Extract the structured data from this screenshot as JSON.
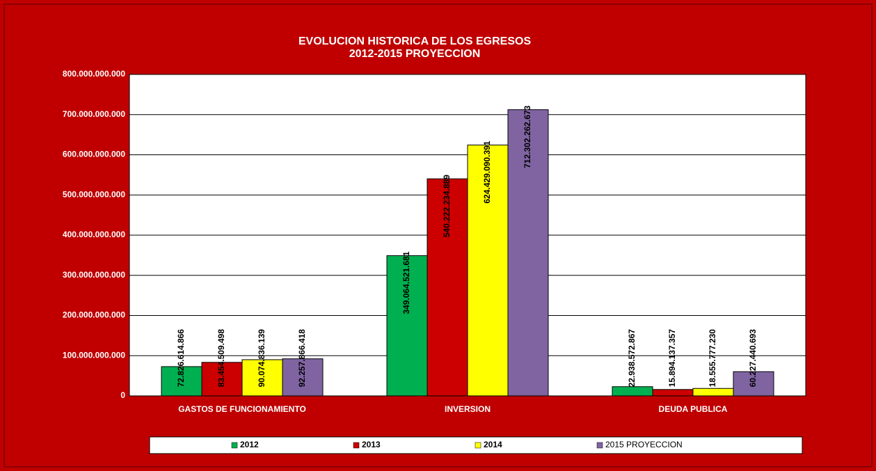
{
  "chart_data": {
    "type": "bar",
    "title": "EVOLUCION HISTORICA DE LOS EGRESOS",
    "subtitle": "2012-2015 PROYECCION",
    "categories": [
      "GASTOS DE FUNCIONAMIENTO",
      "INVERSION",
      "DEUDA PUBLICA"
    ],
    "series": [
      {
        "name": "2012",
        "color": "#00b050",
        "values": [
          72826614866,
          349064521681,
          22938572867
        ],
        "value_labels": [
          "72.826.614.866",
          "349.064.521.681",
          "22.938.572.867"
        ]
      },
      {
        "name": "2013",
        "color": "#cc0000",
        "values": [
          83454509498,
          540222234889,
          15894137357
        ],
        "value_labels": [
          "83.454.509.498",
          "540.222.234.889",
          "15.894.137.357"
        ]
      },
      {
        "name": "2014",
        "color": "#ffff00",
        "values": [
          90074836139,
          624429090391,
          18555777230
        ],
        "value_labels": [
          "90.074.836.139",
          "624.429.090.391",
          "18.555.777.230"
        ]
      },
      {
        "name": "2015 PROYECCION",
        "color": "#8064a2",
        "values": [
          92257866418,
          712302262673,
          60227440693
        ],
        "value_labels": [
          "92.257.866.418",
          "712.302.262.673",
          "60.227.440.693"
        ]
      }
    ],
    "ylim": [
      0,
      800000000000
    ],
    "yticks": [
      0,
      {
        "value": 100000000000,
        "label": "100.000.000.000"
      },
      {
        "value": 200000000000,
        "label": "200.000.000.000"
      },
      {
        "value": 300000000000,
        "label": "300.000.000.000"
      },
      {
        "value": 400000000000,
        "label": "400.000.000.000"
      },
      {
        "value": 500000000000,
        "label": "500.000.000.000"
      },
      {
        "value": 600000000000,
        "label": "600.000.000.000"
      },
      {
        "value": 700000000000,
        "label": "700.000.000.000"
      },
      {
        "value": 800000000000,
        "label": "800.000.000.000"
      }
    ],
    "grid": true,
    "legend": "bottom"
  }
}
